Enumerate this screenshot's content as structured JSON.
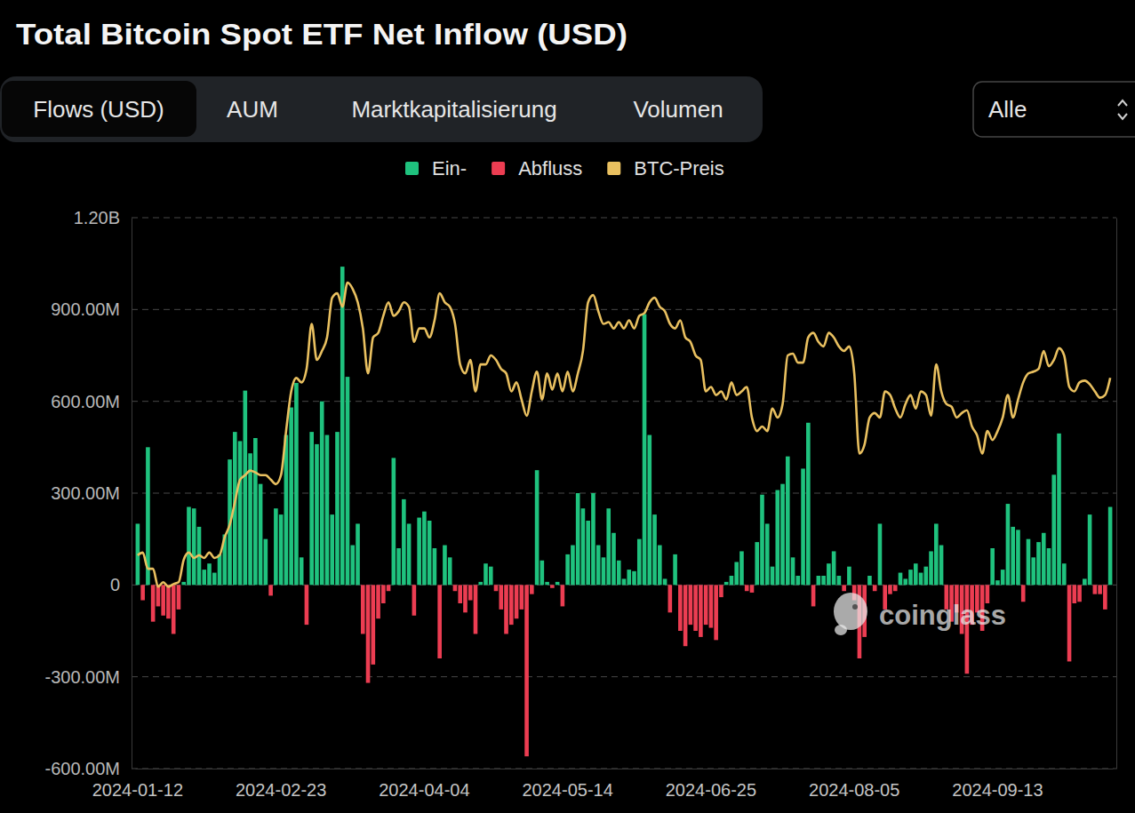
{
  "chart_data": {
    "type": "bar",
    "title": "Total Bitcoin Spot ETF Net Inflow (USD)",
    "annotations": [
      "coinglass"
    ],
    "categories": [
      "2024-01-12",
      null,
      null,
      null,
      null,
      null,
      null,
      null,
      null,
      null,
      null,
      null,
      null,
      null,
      null,
      null,
      null,
      null,
      null,
      null,
      null,
      null,
      null,
      null,
      null,
      null,
      null,
      null,
      "2024-02-23",
      null,
      null,
      null,
      null,
      null,
      null,
      null,
      null,
      null,
      null,
      null,
      null,
      null,
      null,
      null,
      null,
      null,
      null,
      null,
      null,
      null,
      null,
      null,
      null,
      null,
      null,
      null,
      "2024-04-04",
      null,
      null,
      null,
      null,
      null,
      null,
      null,
      null,
      null,
      null,
      null,
      null,
      null,
      null,
      null,
      null,
      null,
      null,
      null,
      null,
      null,
      null,
      null,
      null,
      null,
      null,
      null,
      "2024-05-14",
      null,
      null,
      null,
      null,
      null,
      null,
      null,
      null,
      null,
      null,
      null,
      null,
      null,
      null,
      null,
      null,
      null,
      null,
      null,
      null,
      null,
      null,
      null,
      null,
      null,
      null,
      null,
      "2024-06-25",
      null,
      null,
      null,
      null,
      null,
      null,
      null,
      null,
      null,
      null,
      null,
      null,
      null,
      null,
      null,
      null,
      null,
      null,
      null,
      null,
      null,
      null,
      null,
      null,
      null,
      null,
      null,
      "2024-08-05",
      null,
      null,
      null,
      null,
      null,
      null,
      null,
      null,
      null,
      null,
      null,
      null,
      null,
      null,
      null,
      null,
      null,
      null,
      null,
      null,
      null,
      null,
      null,
      null,
      null,
      null,
      null,
      "2024-09-13",
      null,
      null,
      null,
      null,
      null,
      null,
      null,
      null,
      null,
      null,
      null,
      null,
      null,
      null,
      null,
      null,
      null,
      null,
      null,
      null,
      null,
      null
    ],
    "series": [
      {
        "name": "Ein-",
        "type": "bar",
        "color": "#1fc27e",
        "values": [
          200000000,
          null,
          450000000,
          null,
          null,
          null,
          null,
          null,
          null,
          10000000,
          255000000,
          250000000,
          190000000,
          50000000,
          70000000,
          40000000,
          100000000,
          165000000,
          410000000,
          500000000,
          470000000,
          635000000,
          430000000,
          480000000,
          330000000,
          150000000,
          null,
          250000000,
          230000000,
          490000000,
          580000000,
          660000000,
          90000000,
          null,
          500000000,
          460000000,
          600000000,
          490000000,
          230000000,
          500000000,
          1040000000,
          680000000,
          130000000,
          200000000,
          null,
          null,
          null,
          null,
          null,
          null,
          415000000,
          120000000,
          280000000,
          200000000,
          null,
          220000000,
          240000000,
          210000000,
          120000000,
          null,
          130000000,
          90000000,
          null,
          null,
          null,
          null,
          null,
          10000000,
          70000000,
          60000000,
          null,
          null,
          null,
          null,
          null,
          null,
          null,
          null,
          375000000,
          80000000,
          10000000,
          null,
          10000000,
          null,
          100000000,
          130000000,
          300000000,
          250000000,
          210000000,
          300000000,
          130000000,
          90000000,
          250000000,
          170000000,
          80000000,
          20000000,
          50000000,
          45000000,
          150000000,
          885000000,
          490000000,
          230000000,
          130000000,
          20000000,
          null,
          100000000,
          null,
          null,
          null,
          null,
          null,
          null,
          null,
          null,
          null,
          10000000,
          30000000,
          75000000,
          110000000,
          null,
          null,
          140000000,
          295000000,
          200000000,
          60000000,
          310000000,
          330000000,
          420000000,
          90000000,
          30000000,
          380000000,
          530000000,
          null,
          30000000,
          30000000,
          70000000,
          110000000,
          30000000,
          null,
          60000000,
          null,
          null,
          null,
          30000000,
          null,
          200000000,
          null,
          null,
          null,
          40000000,
          20000000,
          50000000,
          70000000,
          40000000,
          60000000,
          110000000,
          200000000,
          130000000,
          null,
          null,
          null,
          null,
          null,
          null,
          null,
          null,
          null,
          120000000,
          15000000,
          50000000,
          265000000,
          190000000,
          180000000,
          null,
          150000000,
          90000000,
          140000000,
          170000000,
          120000000,
          360000000,
          495000000,
          70000000,
          null,
          null,
          null,
          20000000,
          230000000,
          null,
          null,
          null,
          255000000
        ]
      },
      {
        "name": "Abfluss",
        "type": "bar",
        "color": "#ec3d52",
        "values": [
          null,
          -50000000,
          null,
          -120000000,
          -70000000,
          -100000000,
          -110000000,
          -160000000,
          -80000000,
          null,
          null,
          null,
          null,
          null,
          null,
          null,
          null,
          null,
          null,
          null,
          null,
          null,
          null,
          null,
          null,
          null,
          -35000000,
          null,
          null,
          null,
          null,
          null,
          null,
          -130000000,
          null,
          null,
          null,
          null,
          null,
          null,
          null,
          null,
          null,
          null,
          -160000000,
          -320000000,
          -260000000,
          -110000000,
          -60000000,
          -20000000,
          null,
          null,
          null,
          null,
          -100000000,
          null,
          null,
          null,
          null,
          -240000000,
          null,
          null,
          -20000000,
          -60000000,
          -90000000,
          -50000000,
          -160000000,
          null,
          null,
          null,
          -20000000,
          -80000000,
          -160000000,
          -130000000,
          -110000000,
          -80000000,
          -560000000,
          -30000000,
          null,
          null,
          null,
          -10000000,
          null,
          -70000000,
          null,
          null,
          null,
          null,
          null,
          null,
          null,
          null,
          null,
          null,
          null,
          null,
          null,
          null,
          null,
          null,
          null,
          null,
          null,
          null,
          -90000000,
          null,
          -150000000,
          -200000000,
          -130000000,
          -150000000,
          -170000000,
          -130000000,
          -140000000,
          -180000000,
          -40000000,
          null,
          null,
          null,
          null,
          -20000000,
          -25000000,
          null,
          null,
          null,
          null,
          null,
          null,
          null,
          null,
          null,
          null,
          null,
          -70000000,
          null,
          null,
          null,
          null,
          null,
          -20000000,
          null,
          -50000000,
          -240000000,
          -170000000,
          null,
          -20000000,
          null,
          -80000000,
          -30000000,
          -20000000,
          null,
          null,
          null,
          null,
          null,
          null,
          null,
          null,
          null,
          -80000000,
          -120000000,
          -90000000,
          -160000000,
          -290000000,
          -130000000,
          -90000000,
          -150000000,
          -60000000,
          null,
          null,
          null,
          null,
          null,
          null,
          -55000000,
          null,
          null,
          null,
          null,
          null,
          null,
          null,
          null,
          -250000000,
          -60000000,
          -55000000,
          null,
          null,
          -30000000,
          -30000000,
          -80000000,
          null
        ]
      },
      {
        "name": "BTC-Preis",
        "type": "line",
        "axis": "y2",
        "color": "#e9c060",
        "values": [
          42300,
          42600,
          40800,
          40800,
          38800,
          39300,
          38800,
          39100,
          39300,
          41800,
          42600,
          42000,
          42300,
          42000,
          42600,
          42000,
          42300,
          44300,
          45700,
          48200,
          50700,
          51200,
          51700,
          51500,
          51200,
          51200,
          50700,
          50200,
          51200,
          56100,
          60500,
          62000,
          61500,
          63000,
          68000,
          64000,
          65000,
          66500,
          70900,
          71400,
          69900,
          72600,
          71900,
          70400,
          67500,
          62500,
          66500,
          67000,
          68900,
          70400,
          68900,
          69400,
          70400,
          69900,
          66000,
          67500,
          67500,
          66500,
          68400,
          71400,
          70400,
          69900,
          68000,
          63500,
          62500,
          64000,
          60500,
          63500,
          63500,
          64500,
          64000,
          63000,
          62500,
          60500,
          61500,
          59600,
          57800,
          60500,
          62700,
          59600,
          62500,
          60700,
          62500,
          60500,
          62700,
          60500,
          62500,
          65000,
          70400,
          71200,
          69400,
          68000,
          68200,
          67500,
          68200,
          67500,
          68400,
          67500,
          68900,
          69200,
          70400,
          70900,
          69900,
          69400,
          68000,
          67500,
          68400,
          66500,
          66000,
          64500,
          64000,
          60500,
          61000,
          60100,
          60500,
          59600,
          61500,
          60100,
          60500,
          61000,
          57600,
          56100,
          56600,
          56100,
          58600,
          57600,
          59100,
          64500,
          64700,
          63700,
          63700,
          66500,
          67000,
          66000,
          65500,
          67000,
          66500,
          65500,
          65000,
          65500,
          62500,
          53600,
          54600,
          57600,
          58100,
          57600,
          60500,
          60100,
          58600,
          57600,
          59100,
          60100,
          58600,
          60500,
          60100,
          57800,
          63500,
          60500,
          59100,
          58800,
          57600,
          58100,
          58400,
          56600,
          55600,
          53600,
          56100,
          55100,
          56100,
          57600,
          60100,
          57600,
          59600,
          61500,
          62500,
          62700,
          63000,
          65000,
          63300,
          64000,
          65300,
          64500,
          61000,
          60500,
          61500,
          61700,
          61300,
          60500,
          59800,
          60100,
          62000
        ]
      }
    ],
    "ylim": [
      -600000000,
      1200000000
    ],
    "yticks": [
      {
        "value": -600000000,
        "label": "-600.00M"
      },
      {
        "value": -300000000,
        "label": "-300.00M"
      },
      0,
      {
        "value": 300000000,
        "label": "300.00M"
      },
      {
        "value": 600000000,
        "label": "600.00M"
      },
      {
        "value": 900000000,
        "label": "900.00M"
      },
      {
        "value": 1200000000,
        "label": "1.20B"
      }
    ],
    "y2lim": [
      18600,
      79800
    ],
    "y2ticks": [],
    "grid": true,
    "legend": "top"
  },
  "tabs": [
    "Flows (USD)",
    "AUM",
    "Marktkapitalisierung",
    "Volumen"
  ],
  "period": "Alle"
}
